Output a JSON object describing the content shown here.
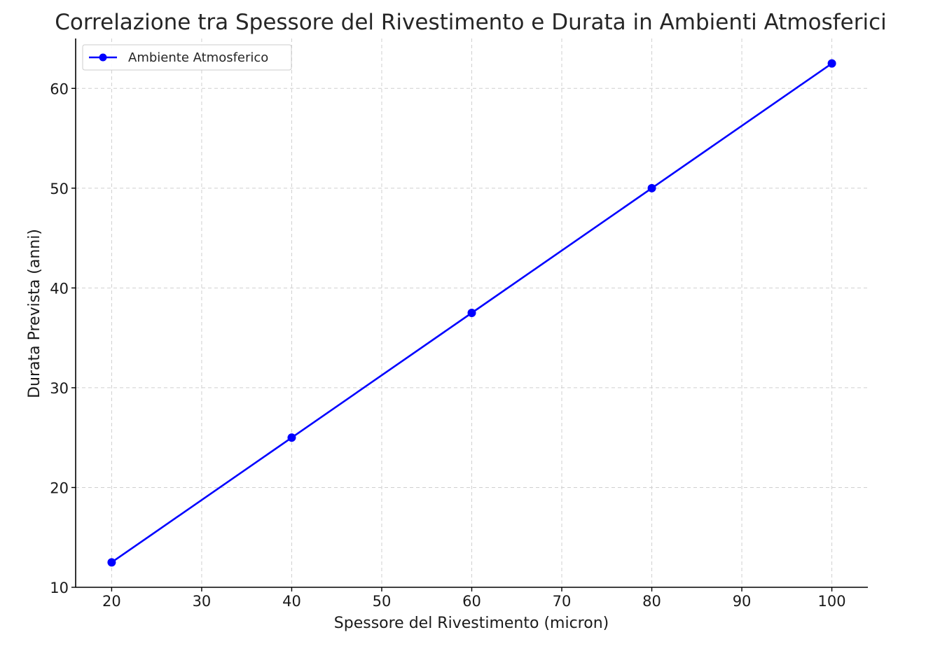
{
  "chart_data": {
    "type": "line",
    "title": "Correlazione tra Spessore del Rivestimento e Durata in Ambienti Atmosferici",
    "xlabel": "Spessore del Rivestimento (micron)",
    "ylabel": "Durata Prevista (anni)",
    "x": [
      20,
      40,
      60,
      80,
      100
    ],
    "series": [
      {
        "name": "Ambiente Atmosferico",
        "values": [
          12.5,
          25,
          37.5,
          50,
          62.5
        ],
        "color": "#0000ff",
        "marker": "circle"
      }
    ],
    "xlim": [
      16,
      104
    ],
    "ylim": [
      10,
      65
    ],
    "xticks": [
      20,
      30,
      40,
      50,
      60,
      70,
      80,
      90,
      100
    ],
    "yticks": [
      10,
      20,
      30,
      40,
      50,
      60
    ],
    "grid": true,
    "legend_position": "top-left"
  }
}
